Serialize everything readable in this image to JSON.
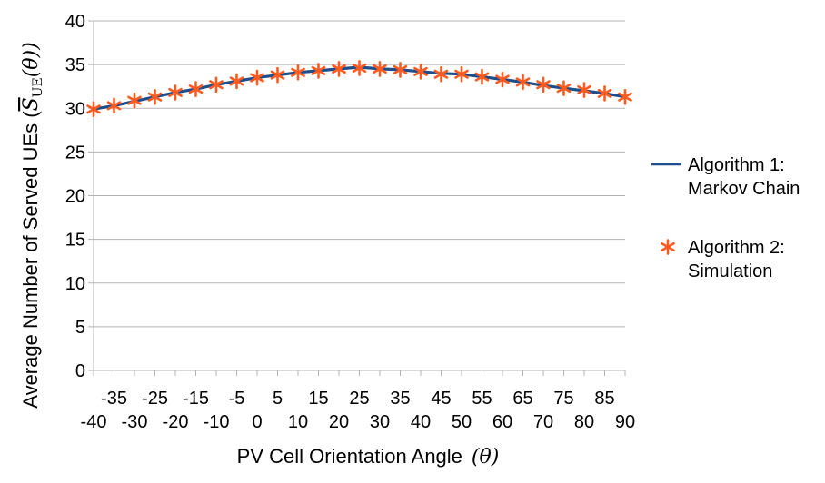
{
  "chart_data": {
    "type": "line",
    "xlabel": "PV Cell Orientation Angle",
    "xlabel_symbol": "(θ)",
    "ylabel": "Average Number of Served UEs (",
    "ylabel_symbol_main": "S",
    "ylabel_symbol_sub": "UE",
    "ylabel_symbol_tail": "(θ))",
    "ylim": [
      0,
      40
    ],
    "yticks": [
      0,
      5,
      10,
      15,
      20,
      25,
      30,
      35,
      40
    ],
    "xlim": [
      -40,
      90
    ],
    "xticks_upper": [
      "-35",
      "-25",
      "-15",
      "-5",
      "5",
      "15",
      "25",
      "35",
      "45",
      "55",
      "65",
      "75",
      "85"
    ],
    "xticks_lower": [
      "-40",
      "-30",
      "-20",
      "-10",
      "0",
      "10",
      "20",
      "30",
      "40",
      "50",
      "60",
      "70",
      "80",
      "90"
    ],
    "grid": "horizontal",
    "legend_position": "right",
    "x": [
      -40,
      -35,
      -30,
      -25,
      -20,
      -15,
      -10,
      -5,
      0,
      5,
      10,
      15,
      20,
      25,
      30,
      35,
      40,
      45,
      50,
      55,
      60,
      65,
      70,
      75,
      80,
      85,
      90
    ],
    "series": [
      {
        "name": "Algorithm 1: Markov Chain",
        "legend_lines": [
          "Algorithm 1:",
          "Markov Chain"
        ],
        "style": "line",
        "color": "#1f4e8c",
        "values": [
          29.9,
          30.3,
          30.8,
          31.3,
          31.8,
          32.2,
          32.7,
          33.1,
          33.5,
          33.8,
          34.1,
          34.3,
          34.5,
          34.7,
          34.5,
          34.4,
          34.2,
          34.0,
          33.9,
          33.6,
          33.3,
          33.0,
          32.6,
          32.3,
          32.0,
          31.7,
          31.3
        ]
      },
      {
        "name": "Algorithm 2: Simulation",
        "legend_lines": [
          "Algorithm 2:",
          "Simulation"
        ],
        "style": "marker",
        "marker": "asterisk",
        "color": "#ff5a1f",
        "values": [
          29.9,
          30.3,
          30.9,
          31.3,
          31.8,
          32.2,
          32.7,
          33.1,
          33.5,
          33.8,
          34.1,
          34.3,
          34.5,
          34.6,
          34.5,
          34.4,
          34.2,
          33.9,
          33.9,
          33.6,
          33.3,
          33.0,
          32.7,
          32.3,
          32.1,
          31.7,
          31.3
        ]
      }
    ]
  }
}
